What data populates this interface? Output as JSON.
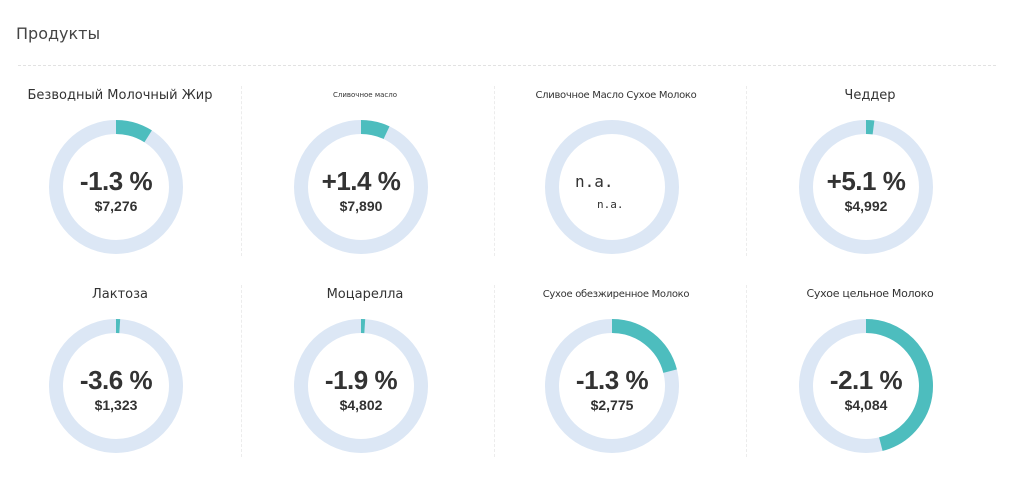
{
  "section": {
    "title": "Продукты"
  },
  "colors": {
    "ring_track": "#dce7f5",
    "ring_fill": "#4dbdbe"
  },
  "products": [
    {
      "name": "Безводный Молочный Жир",
      "change": "-1.3 %",
      "value": "$7,276",
      "share": 0.09
    },
    {
      "name": "Сливочное масло",
      "change": "+1.4 %",
      "value": "$7,890",
      "share": 0.07
    },
    {
      "name": "Сливочное Масло Сухое Молоко",
      "change": "n.a.",
      "value": "n.a.",
      "share": 0
    },
    {
      "name": "Чеддер",
      "change": "+5.1 %",
      "value": "$4,992",
      "share": 0.02
    },
    {
      "name": "Лактоза",
      "change": "-3.6 %",
      "value": "$1,323",
      "share": 0.01
    },
    {
      "name": "Моцарелла",
      "change": "-1.9 %",
      "value": "$4,802",
      "share": 0.01
    },
    {
      "name": "Сухое обезжиренное Молоко",
      "change": "-1.3 %",
      "value": "$2,775",
      "share": 0.21
    },
    {
      "name": "Сухое цельное Молоко",
      "change": "-2.1 %",
      "value": "$4,084",
      "share": 0.46
    }
  ]
}
